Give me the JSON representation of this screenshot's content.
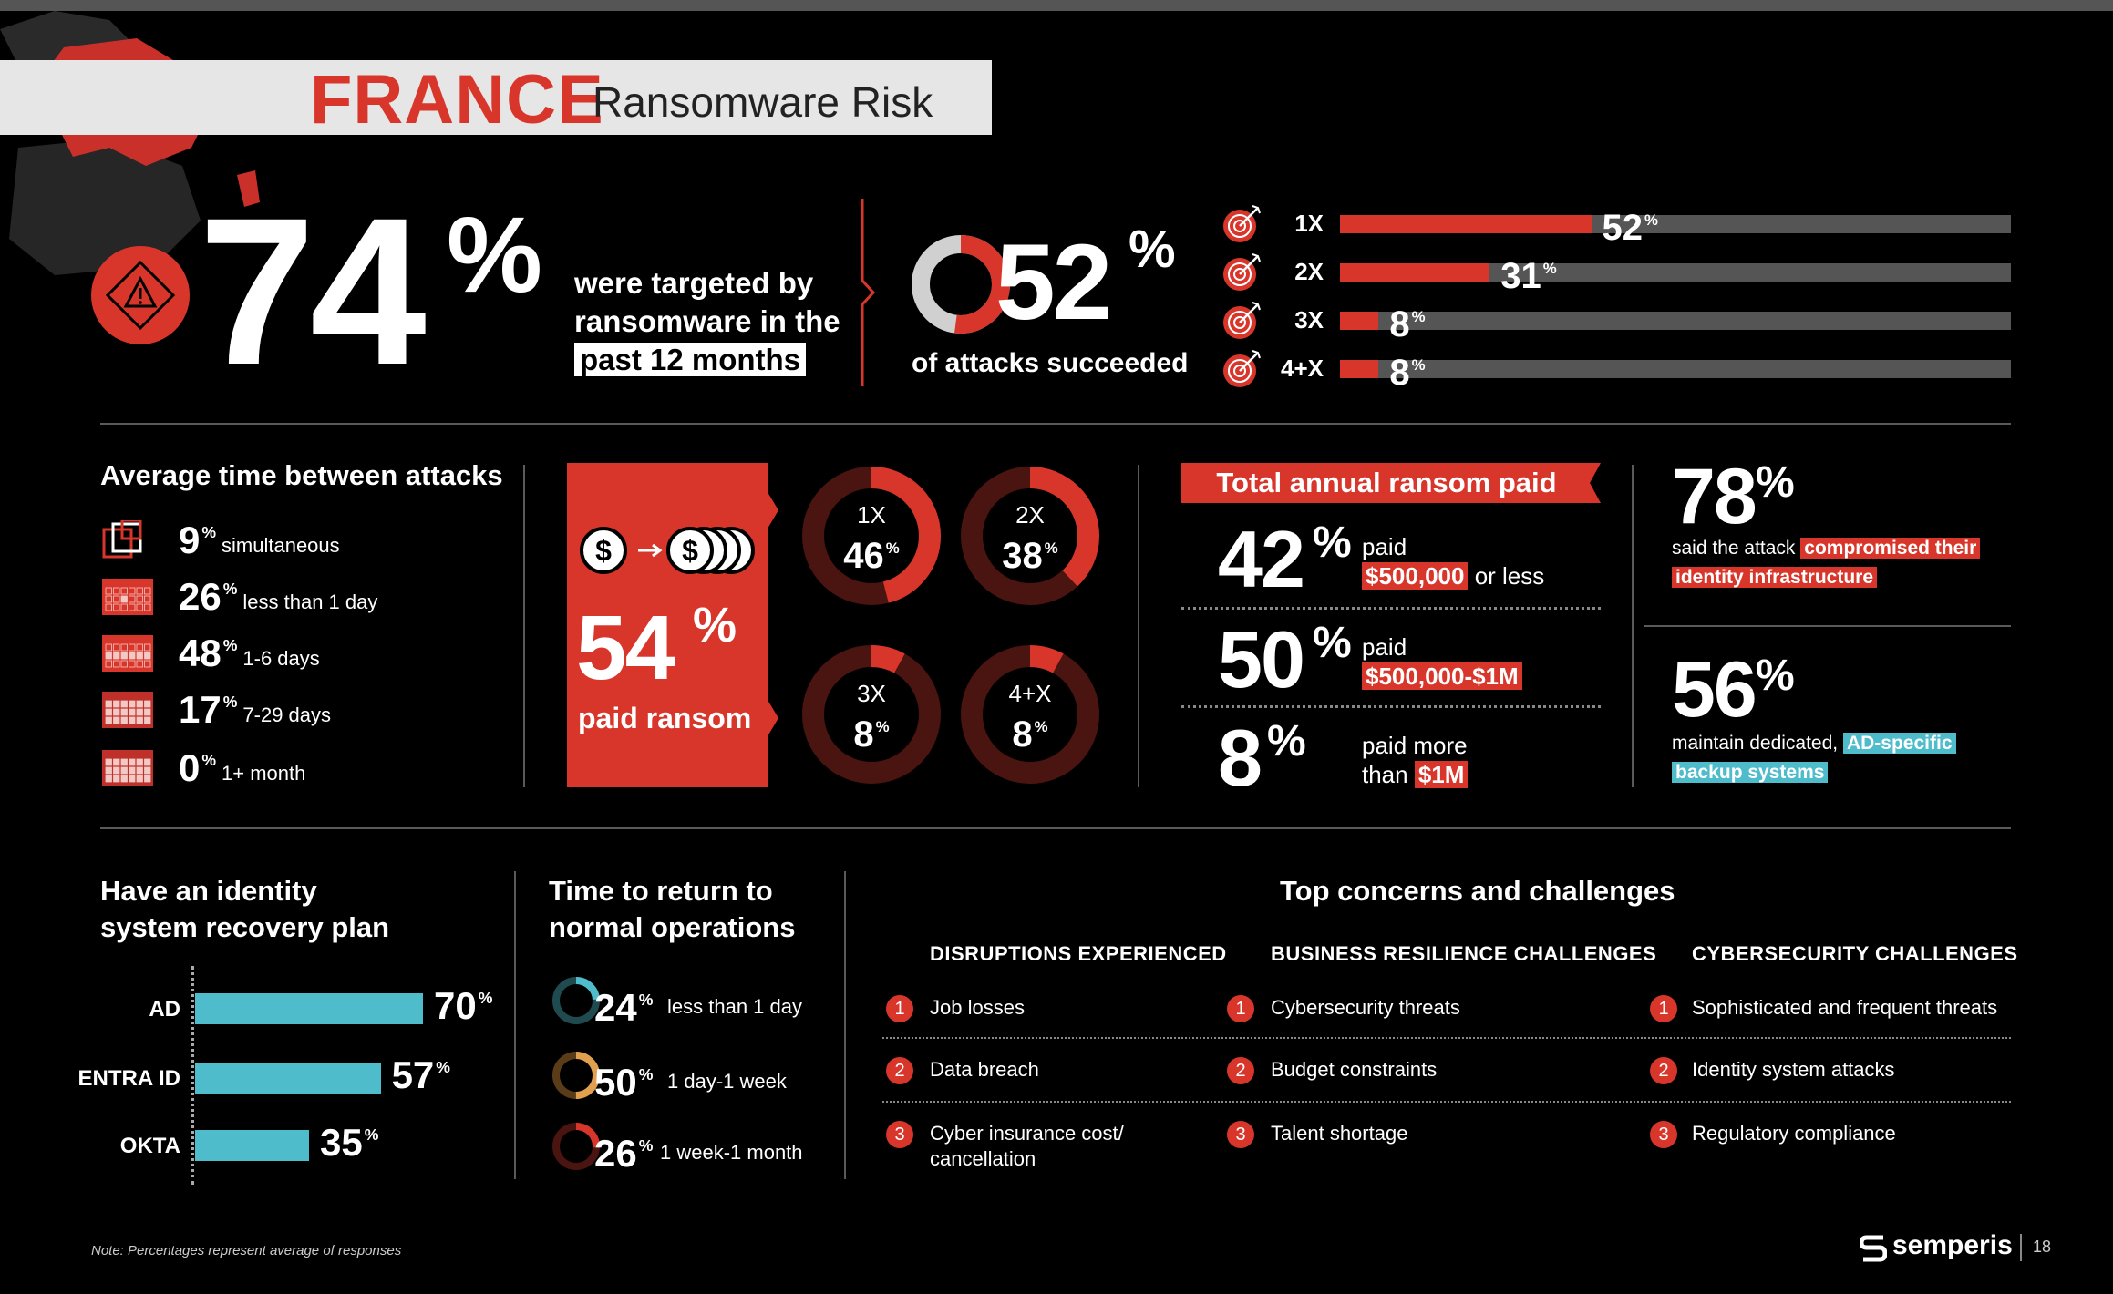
{
  "colors": {
    "accent": "#d9362b",
    "cyan": "#4fbccc",
    "gray": "#555555"
  },
  "header": {
    "country": "FRANCE",
    "subtitle": "Ransomware Risk"
  },
  "hero": {
    "targeted_pct": "74",
    "targeted_line1": "were targeted by",
    "targeted_line2": "ransomware in the",
    "targeted_line3": "past 12 months",
    "succeeded_pct": "52",
    "succeeded_label": "of attacks succeeded",
    "frequency": [
      {
        "label": "1X",
        "pct": "52",
        "value": 52
      },
      {
        "label": "2X",
        "pct": "31",
        "value": 31
      },
      {
        "label": "3X",
        "pct": "8",
        "value": 8
      },
      {
        "label": "4+X",
        "pct": "8",
        "value": 8
      }
    ]
  },
  "avg_time": {
    "title": "Average time between attacks",
    "rows": [
      {
        "pct": "9",
        "label": "simultaneous"
      },
      {
        "pct": "26",
        "label": "less than 1 day"
      },
      {
        "pct": "48",
        "label": "1-6 days"
      },
      {
        "pct": "17",
        "label": "7-29 days"
      },
      {
        "pct": "0",
        "label": "1+ month"
      }
    ]
  },
  "paid": {
    "pct": "54",
    "label": "paid ransom",
    "donuts": [
      {
        "label": "1X",
        "pct": "46",
        "value": 46
      },
      {
        "label": "2X",
        "pct": "38",
        "value": 38
      },
      {
        "label": "3X",
        "pct": "8",
        "value": 8
      },
      {
        "label": "4+X",
        "pct": "8",
        "value": 8
      }
    ]
  },
  "total_ransom": {
    "title": "Total annual ransom paid",
    "rows": [
      {
        "pct": "42",
        "pre": "paid",
        "highlight": "$500,000",
        "post": "or less"
      },
      {
        "pct": "50",
        "pre": "paid",
        "highlight": "$500,000-$1M",
        "post": ""
      },
      {
        "pct": "8",
        "pre": "paid more",
        "pre2": "than",
        "highlight": "$1M",
        "post": ""
      }
    ]
  },
  "identity_stats": {
    "stat1_pct": "78",
    "stat1_pre": "said the attack",
    "stat1_hl1": "compromised their",
    "stat1_hl2": "identity infrastructure",
    "stat2_pct": "56",
    "stat2_pre": "maintain dedicated,",
    "stat2_hl1": "AD-specific",
    "stat2_hl2": "backup systems"
  },
  "recovery_plan": {
    "title_line1": "Have an identity",
    "title_line2": "system recovery plan",
    "bars": [
      {
        "label": "AD",
        "pct": "70",
        "value": 70
      },
      {
        "label": "ENTRA ID",
        "pct": "57",
        "value": 57
      },
      {
        "label": "OKTA",
        "pct": "35",
        "value": 35
      }
    ]
  },
  "return_time": {
    "title_line1": "Time to return to",
    "title_line2": "normal operations",
    "rows": [
      {
        "pct": "24",
        "label": "less than 1 day",
        "value": 24,
        "color": "#4fbccc"
      },
      {
        "pct": "50",
        "label": "1 day-1 week",
        "value": 50,
        "color": "#e0a050"
      },
      {
        "pct": "26",
        "label": "1 week-1 month",
        "value": 26,
        "color": "#d9362b"
      }
    ]
  },
  "concerns": {
    "title": "Top concerns and challenges",
    "columns": [
      {
        "head": "DISRUPTIONS EXPERIENCED",
        "items": [
          "Job losses",
          "Data breach",
          "Cyber insurance cost/",
          "cancellation"
        ]
      },
      {
        "head": "BUSINESS RESILIENCE CHALLENGES",
        "items": [
          "Cybersecurity threats",
          "Budget constraints",
          "Talent shortage"
        ]
      },
      {
        "head": "CYBERSECURITY CHALLENGES",
        "items": [
          "Sophisticated and frequent threats",
          "Identity system attacks",
          "Regulatory compliance"
        ]
      }
    ]
  },
  "footer": {
    "note": "Note: Percentages represent average of responses",
    "brand": "semperis",
    "page": "18"
  },
  "symbols": {
    "pct": "%",
    "dollar": "$"
  }
}
